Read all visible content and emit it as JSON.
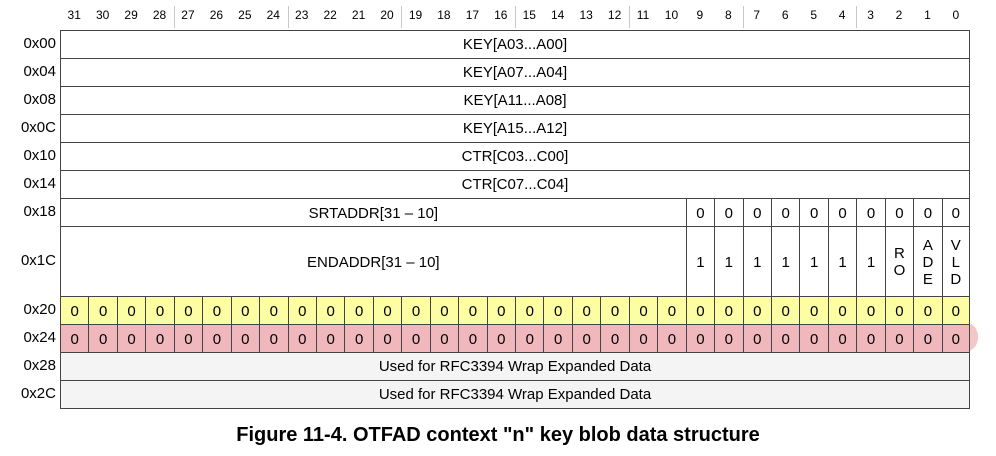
{
  "bit_numbers": [
    "31",
    "30",
    "29",
    "28",
    "27",
    "26",
    "25",
    "24",
    "23",
    "22",
    "21",
    "20",
    "19",
    "18",
    "17",
    "16",
    "15",
    "14",
    "13",
    "12",
    "11",
    "10",
    "9",
    "8",
    "7",
    "6",
    "5",
    "4",
    "3",
    "2",
    "1",
    "0"
  ],
  "rows": [
    {
      "offset": "0x00",
      "kind": "full",
      "text": "KEY[A03...A00]"
    },
    {
      "offset": "0x04",
      "kind": "full",
      "text": "KEY[A07...A04]"
    },
    {
      "offset": "0x08",
      "kind": "full",
      "text": "KEY[A11...A08]"
    },
    {
      "offset": "0x0C",
      "kind": "full",
      "text": "KEY[A15...A12]"
    },
    {
      "offset": "0x10",
      "kind": "full",
      "text": "CTR[C03...C00]"
    },
    {
      "offset": "0x14",
      "kind": "full",
      "text": "CTR[C07...C04]"
    },
    {
      "offset": "0x18",
      "kind": "split",
      "text": "SRTADDR[31 – 10]",
      "bits": [
        "0",
        "0",
        "0",
        "0",
        "0",
        "0",
        "0",
        "0",
        "0",
        "0"
      ]
    },
    {
      "offset": "0x1C",
      "kind": "split",
      "text": "ENDADDR[31 – 10]",
      "bits": [
        "1",
        "1",
        "1",
        "1",
        "1",
        "1",
        "1",
        [
          "R",
          "O"
        ],
        [
          "A",
          "D",
          "E"
        ],
        [
          "V",
          "L",
          "D"
        ]
      ]
    },
    {
      "offset": "0x20",
      "kind": "bits",
      "color": "#fdfda3",
      "bits": [
        "0",
        "0",
        "0",
        "0",
        "0",
        "0",
        "0",
        "0",
        "0",
        "0",
        "0",
        "0",
        "0",
        "0",
        "0",
        "0",
        "0",
        "0",
        "0",
        "0",
        "0",
        "0",
        "0",
        "0",
        "0",
        "0",
        "0",
        "0",
        "0",
        "0",
        "0",
        "0"
      ]
    },
    {
      "offset": "0x24",
      "kind": "bits",
      "color": "#f0b8bc",
      "bits": [
        "0",
        "0",
        "0",
        "0",
        "0",
        "0",
        "0",
        "0",
        "0",
        "0",
        "0",
        "0",
        "0",
        "0",
        "0",
        "0",
        "0",
        "0",
        "0",
        "0",
        "0",
        "0",
        "0",
        "0",
        "0",
        "0",
        "0",
        "0",
        "0",
        "0",
        "0",
        "0"
      ]
    },
    {
      "offset": "0x28",
      "kind": "full",
      "shade": "#f4f4f4",
      "text": "Used for RFC3394 Wrap Expanded Data"
    },
    {
      "offset": "0x2C",
      "kind": "full",
      "shade": "#f4f4f4",
      "text": "Used for RFC3394 Wrap Expanded Data"
    }
  ],
  "caption": "Figure 11-4. OTFAD context \"n\" key blob data structure"
}
